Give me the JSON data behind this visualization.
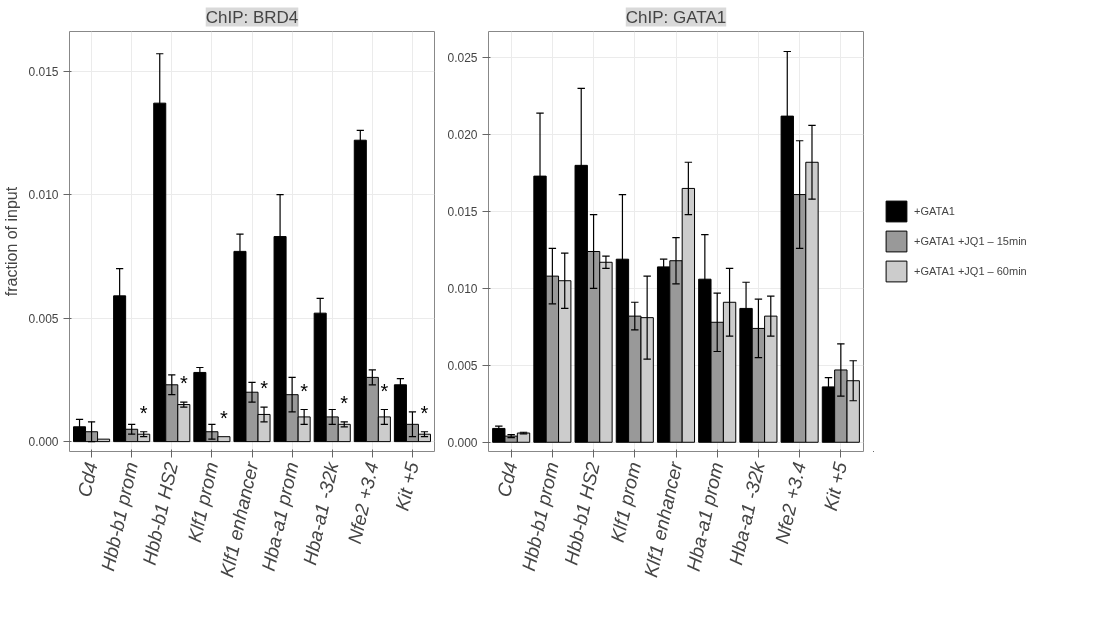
{
  "chart_data": [
    {
      "type": "bar",
      "title": "ChIP: BRD4",
      "ylabel": "fraction of input",
      "categories": [
        "Cd4",
        "Hbb-b1 prom",
        "Hbb-b1 HS2",
        "Klf1 prom",
        "Klf1 enhancer",
        "Hba-a1 prom",
        "Hba-a1 -32k",
        "Nfe2 +3.4",
        "Kit +5"
      ],
      "series": [
        {
          "color": "#000000",
          "values": [
            0.0006,
            0.0059,
            0.0137,
            0.0028,
            0.0077,
            0.0083,
            0.0052,
            0.0122,
            0.0023
          ],
          "errors": [
            0.0003,
            0.0011,
            0.002,
            0.0002,
            0.0007,
            0.0017,
            0.0006,
            0.0004,
            0.00025
          ]
        },
        {
          "color": "#999999",
          "values": [
            0.0004,
            0.0005,
            0.0023,
            0.0004,
            0.002,
            0.0019,
            0.001,
            0.0026,
            0.0007
          ],
          "errors": [
            0.0004,
            0.0002,
            0.0004,
            0.0003,
            0.0004,
            0.0007,
            0.0003,
            0.0003,
            0.0005
          ]
        },
        {
          "color": "#cccccc",
          "values": [
            0.0001,
            0.0003,
            0.0015,
            0.0002,
            0.0011,
            0.001,
            0.0007,
            0.001,
            0.0003
          ],
          "errors": [
            null,
            0.0001,
            0.0001,
            null,
            0.0003,
            0.0003,
            0.0001,
            0.0003,
            0.0001
          ],
          "value_labels": [
            null,
            "*",
            "*",
            "*",
            "*",
            "*",
            "*",
            "*",
            "*"
          ]
        }
      ],
      "ylim": [
        -0.0004,
        0.0166
      ],
      "yticks": [
        {
          "value": 0,
          "label": "0.000"
        },
        {
          "value": 0.005,
          "label": "0.005"
        },
        {
          "value": 0.01,
          "label": "0.010"
        },
        {
          "value": 0.015,
          "label": "0.015"
        }
      ],
      "grid": true
    },
    {
      "type": "bar",
      "title": "ChIP: GATA1",
      "categories": [
        "Cd4",
        "Hbb-b1 prom",
        "Hbb-b1 HS2",
        "Klf1 prom",
        "Klf1 enhancer",
        "Hba-a1 prom",
        "Hba-a1 -32k",
        "Nfe2 +3.4",
        "Kit +5"
      ],
      "series": [
        {
          "name": "+GATA1",
          "color": "#000000",
          "values": [
            0.0009,
            0.0173,
            0.018,
            0.0119,
            0.0114,
            0.0106,
            0.0087,
            0.0212,
            0.0036
          ],
          "errors": [
            0.00015,
            0.0041,
            0.005,
            0.0042,
            0.0005,
            0.0029,
            0.0017,
            0.0042,
            0.0006
          ]
        },
        {
          "name": "+GATA1 +JQ1 – 15min",
          "color": "#999999",
          "values": [
            0.0004,
            0.0108,
            0.0124,
            0.0082,
            0.0118,
            0.0078,
            0.0074,
            0.0161,
            0.0047
          ],
          "errors": [
            0.0001,
            0.0018,
            0.0024,
            0.0009,
            0.0015,
            0.0019,
            0.0019,
            0.0035,
            0.0017
          ]
        },
        {
          "name": "+GATA1 +JQ1 – 60min",
          "color": "#cccccc",
          "values": [
            0.0006,
            0.0105,
            0.0117,
            0.0081,
            0.0165,
            0.0091,
            0.0082,
            0.0182,
            0.004
          ],
          "errors": [
            5e-05,
            0.0018,
            0.0004,
            0.0027,
            0.0017,
            0.0022,
            0.0013,
            0.0024,
            0.0013
          ]
        }
      ],
      "ylim": [
        -0.0006,
        0.0267
      ],
      "yticks": [
        {
          "value": 0,
          "label": "0.000"
        },
        {
          "value": 0.005,
          "label": "0.005"
        },
        {
          "value": 0.01,
          "label": "0.010"
        },
        {
          "value": 0.015,
          "label": "0.015"
        },
        {
          "value": 0.02,
          "label": "0.020"
        },
        {
          "value": 0.025,
          "label": "0.025"
        }
      ],
      "grid": true,
      "legend": "right"
    }
  ]
}
